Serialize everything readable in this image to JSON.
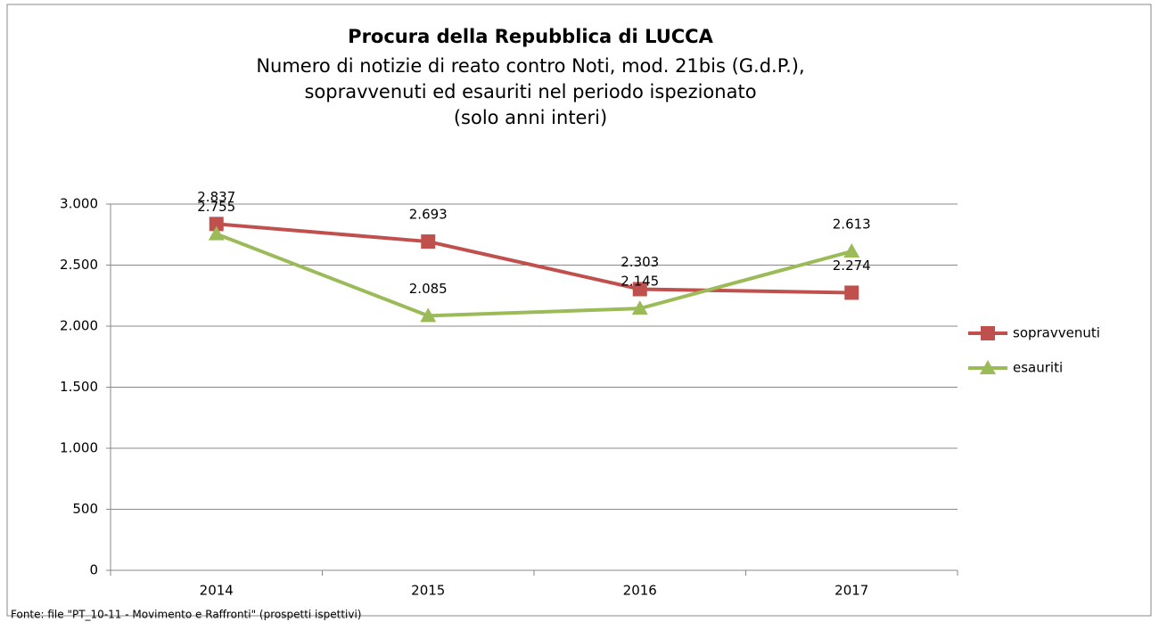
{
  "chart_data": {
    "type": "line",
    "title": "Procura della Repubblica di LUCCA",
    "subtitle": [
      "Numero di notizie di reato contro Noti, mod. 21bis (G.d.P.),",
      "sopravvenuti ed esauriti nel periodo ispezionato",
      "(solo anni interi)"
    ],
    "source": "Fonte: file \"PT_10-11 - Movimento e Raffronti\" (prospetti ispettivi)",
    "categories": [
      "2014",
      "2015",
      "2016",
      "2017"
    ],
    "series": [
      {
        "name": "sopravvenuti",
        "color": "#c0504d",
        "values": [
          2837,
          2693,
          2303,
          2274
        ],
        "value_labels": [
          "2.837",
          "2.693",
          "2.303",
          "2.274"
        ]
      },
      {
        "name": "esauriti",
        "color": "#9bbb59",
        "values": [
          2755,
          2085,
          2145,
          2613
        ],
        "value_labels": [
          "2.755",
          "2.085",
          "2.145",
          "2.613"
        ]
      }
    ],
    "ylim": [
      0,
      3000
    ],
    "yticks": [
      0,
      500,
      {
        "value": 1000,
        "label": "1.000"
      },
      {
        "value": 1500,
        "label": "1.500"
      },
      {
        "value": 2000,
        "label": "2.000"
      },
      {
        "value": 2500,
        "label": "2.500"
      },
      {
        "value": 3000,
        "label": "3.000"
      }
    ],
    "grid": true,
    "legend": "right"
  }
}
